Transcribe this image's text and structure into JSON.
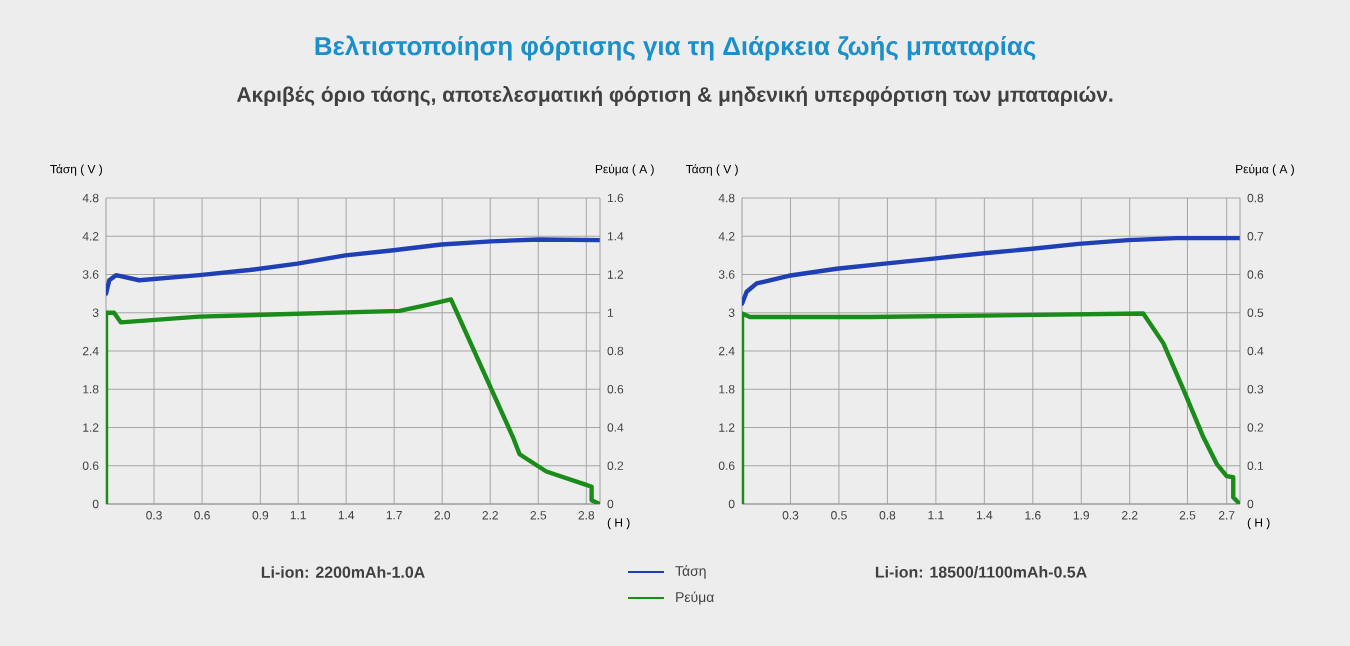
{
  "chart_data": [
    {
      "type": "line",
      "title": "Βελτιστοποίηση φόρτισης για τη Διάρκεια ζωής μπαταρίας",
      "subtitle": "Ακριβές όριο τάσης, αποτελεσματική φόρτιση & μηδενική υπερφόρτιση των μπαταριών.",
      "xlabel": "( H )",
      "ylabel": "Τάση ( V )",
      "y2label": "Ρεύμα ( A )",
      "annotations": [
        "Li-ion: 2200mAh-1.0A"
      ],
      "grid": true,
      "legend": "bottom right",
      "xlim": [
        0,
        2.88
      ],
      "xticks": [
        {
          "value": 0.28,
          "label": "0.3"
        },
        {
          "value": 0.56,
          "label": "0.6"
        },
        {
          "value": 0.9,
          "label": "0.9"
        },
        {
          "value": 1.12,
          "label": "1.1"
        },
        {
          "value": 1.4,
          "label": "1.4"
        },
        {
          "value": 1.68,
          "label": "1.7"
        },
        {
          "value": 1.96,
          "label": "2.0"
        },
        {
          "value": 2.24,
          "label": "2.2"
        },
        {
          "value": 2.52,
          "label": "2.5"
        },
        {
          "value": 2.8,
          "label": "2.8"
        }
      ],
      "ylim": [
        0,
        4.8
      ],
      "yticks": [
        0,
        0.6,
        1.2,
        1.8,
        2.4,
        3,
        3.6,
        4.2,
        4.8
      ],
      "y2lim": [
        0,
        1.6
      ],
      "y2ticks": [
        0,
        0.2,
        0.4,
        0.6,
        0.8,
        1,
        1.2,
        1.4,
        1.6
      ],
      "series": [
        {
          "name": "Τάση",
          "color": "#1f3fb5",
          "x": [
            0,
            0.019,
            0.058,
            0.194,
            0.544,
            0.836,
            1.116,
            1.396,
            1.676,
            1.956,
            2.244,
            2.524,
            2.878
          ],
          "values": [
            3.3,
            3.51,
            3.59,
            3.51,
            3.59,
            3.67,
            3.77,
            3.9,
            3.98,
            4.07,
            4.12,
            4.15,
            4.14
          ]
        },
        {
          "name": "Ρεύμα",
          "color": "#1a8c1a",
          "axis": "y2",
          "x": [
            0,
            0,
            0.047,
            0.086,
            0.544,
            1.322,
            1.711,
            1.867,
            2.011,
            2.372,
            2.411,
            2.567,
            2.8,
            2.831,
            2.831,
            2.878
          ],
          "values": [
            0,
            1.0,
            1.0,
            0.95,
            0.98,
            1.0,
            1.01,
            1.04,
            1.07,
            0.35,
            0.26,
            0.17,
            0.1,
            0.09,
            0.02,
            0
          ]
        }
      ]
    },
    {
      "type": "line",
      "xlabel": "( H )",
      "ylabel": "Τάση ( V )",
      "y2label": "Ρεύμα ( A )",
      "annotations": [
        "Li-ion: 18500/1100mAh-0.5A"
      ],
      "grid": true,
      "xlim": [
        0,
        2.795
      ],
      "xticks": [
        {
          "value": 0.272,
          "label": "0.3"
        },
        {
          "value": 0.544,
          "label": "0.5"
        },
        {
          "value": 0.816,
          "label": "0.8"
        },
        {
          "value": 1.088,
          "label": "1.1"
        },
        {
          "value": 1.36,
          "label": "1.4"
        },
        {
          "value": 1.632,
          "label": "1.6"
        },
        {
          "value": 1.904,
          "label": "1.9"
        },
        {
          "value": 2.176,
          "label": "2.2"
        },
        {
          "value": 2.5,
          "label": "2.5"
        },
        {
          "value": 2.72,
          "label": "2.7"
        }
      ],
      "ylim": [
        0,
        4.8
      ],
      "yticks": [
        0,
        0.6,
        1.2,
        1.8,
        2.4,
        3,
        3.6,
        4.2,
        4.8
      ],
      "y2lim": [
        0,
        0.8
      ],
      "y2ticks": [
        0,
        0.1,
        0.2,
        0.3,
        0.4,
        0.5,
        0.6,
        0.7,
        0.8
      ],
      "series": [
        {
          "color": "#1f3fb5",
          "x": [
            0,
            0.026,
            0.082,
            0.262,
            0.531,
            0.801,
            1.074,
            1.343,
            1.616,
            1.889,
            2.166,
            2.439,
            2.795
          ],
          "values": [
            3.14,
            3.33,
            3.46,
            3.58,
            3.69,
            3.77,
            3.85,
            3.93,
            4.0,
            4.08,
            4.14,
            4.17,
            4.17
          ]
        },
        {
          "color": "#1a8c1a",
          "axis": "y2",
          "x": [
            0,
            0,
            0.045,
            0.718,
            2.252,
            2.365,
            2.477,
            2.589,
            2.664,
            2.72,
            2.757,
            2.757,
            2.795
          ],
          "values": [
            0,
            0.498,
            0.489,
            0.489,
            0.498,
            0.42,
            0.3,
            0.175,
            0.105,
            0.073,
            0.07,
            0.017,
            0
          ]
        }
      ]
    }
  ]
}
